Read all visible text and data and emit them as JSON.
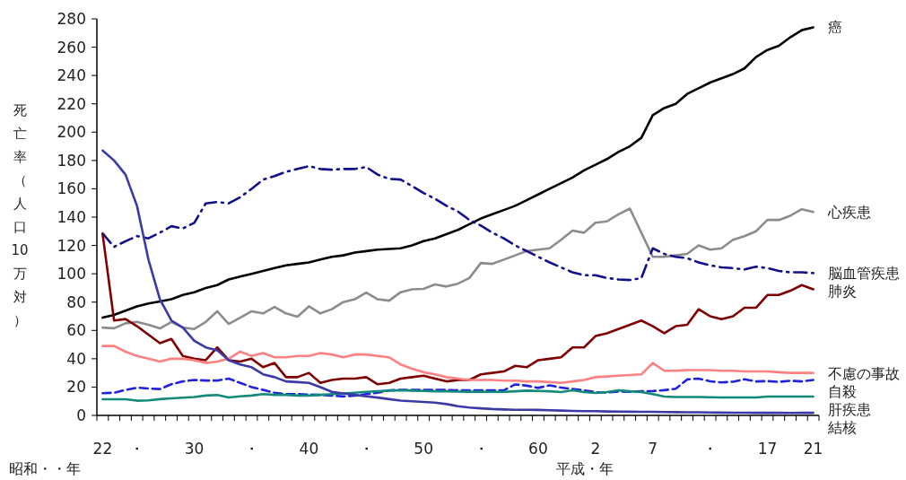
{
  "chart_data": {
    "type": "line",
    "ylabel": "死亡率（人口10万対）",
    "xlabel": "昭和・・年",
    "annotations": [
      "平成・年"
    ],
    "categories": [
      "22",
      null,
      null,
      "・",
      null,
      null,
      null,
      null,
      "30",
      null,
      null,
      null,
      null,
      "・",
      null,
      null,
      null,
      null,
      "40",
      null,
      null,
      null,
      null,
      "・",
      null,
      null,
      null,
      null,
      "50",
      null,
      null,
      null,
      null,
      "・",
      null,
      null,
      null,
      null,
      "60",
      null,
      null,
      null,
      null,
      "2",
      null,
      null,
      null,
      null,
      "7",
      null,
      null,
      null,
      null,
      "・",
      null,
      null,
      null,
      null,
      "17",
      null,
      null,
      null,
      "21"
    ],
    "ylim": [
      0,
      280
    ],
    "yticks": [
      0,
      20,
      40,
      60,
      80,
      100,
      120,
      140,
      160,
      180,
      200,
      220,
      240,
      260,
      280
    ],
    "grid": false,
    "marker": "none",
    "series": [
      {
        "name": "癌",
        "color": "#000000",
        "line_style": "solid",
        "values": [
          69,
          71,
          74,
          77,
          79,
          80.5,
          82,
          85,
          87,
          90,
          92,
          96,
          98,
          100,
          102,
          104,
          106,
          107,
          108,
          110,
          112,
          113,
          115,
          116,
          117,
          117.5,
          118,
          120,
          123,
          125,
          128,
          131,
          135,
          139,
          142,
          145,
          148,
          152,
          156,
          160,
          164,
          168,
          173,
          177,
          181,
          186,
          190,
          196,
          212,
          217,
          220,
          227,
          231,
          235,
          238,
          241,
          245,
          253,
          258,
          261,
          267,
          272,
          274
        ]
      },
      {
        "name": "心疾患",
        "color": "#8c8c8c",
        "line_style": "solid",
        "values": [
          62,
          61.5,
          65,
          66,
          64,
          61.4,
          66,
          62,
          61,
          66,
          73.5,
          64.6,
          69,
          73.5,
          72,
          76.6,
          72,
          69.7,
          77,
          72,
          75,
          80,
          82,
          86.7,
          82,
          81,
          87,
          89,
          89.3,
          92.5,
          91,
          93,
          97,
          107.6,
          107,
          110,
          113,
          116,
          117,
          118,
          124,
          130.5,
          129,
          136,
          137,
          142,
          146,
          129,
          112,
          112,
          113,
          114,
          120,
          117,
          118,
          124,
          126.5,
          130,
          138,
          138,
          141,
          145.6,
          143.7
        ]
      },
      {
        "name": "脳血管疾患",
        "color": "#10108c",
        "line_style": "dashdot",
        "values": [
          128.5,
          119,
          123,
          126.6,
          125,
          129,
          133.6,
          132,
          136,
          149.7,
          150.7,
          149.7,
          154,
          160,
          166.5,
          169,
          172,
          174,
          176,
          174,
          173.5,
          174,
          174,
          175.4,
          170,
          167,
          166.5,
          162,
          157,
          153,
          148,
          144,
          138,
          134,
          129,
          125,
          120,
          116,
          112,
          108,
          104.5,
          101,
          99,
          99,
          97,
          96,
          95.6,
          96.9,
          118,
          114,
          112,
          111,
          108,
          106,
          104.5,
          104,
          103,
          105,
          104,
          102,
          101,
          101,
          100.5
        ]
      },
      {
        "name": "肺炎",
        "color": "#800000",
        "line_style": "solid",
        "values": [
          128,
          67,
          68,
          63,
          57,
          51,
          54,
          42,
          40,
          39,
          48,
          39,
          38,
          40,
          34,
          37,
          27,
          27,
          30,
          23,
          25,
          26,
          26,
          27,
          22,
          23,
          26,
          27,
          28,
          26,
          24,
          25,
          25,
          29,
          30,
          31,
          35,
          34,
          39,
          40,
          41,
          48,
          48,
          56,
          58,
          61,
          64,
          67,
          63,
          58,
          63,
          64,
          75,
          70,
          68,
          70,
          76,
          76,
          85,
          85,
          88,
          92,
          89
        ]
      },
      {
        "name": "不慮の事故",
        "color": "#ff8080",
        "line_style": "solid",
        "values": [
          49,
          49,
          45,
          42,
          40,
          38,
          40,
          40,
          39,
          37,
          38,
          40,
          45,
          42,
          44,
          41,
          41,
          42,
          42,
          44,
          43,
          41,
          43,
          43,
          42,
          41,
          36,
          33,
          30.5,
          29,
          27,
          26,
          25,
          25,
          25,
          24.5,
          24.5,
          24,
          24,
          23.5,
          23,
          24,
          25,
          27,
          27.5,
          28,
          28.5,
          29,
          37,
          31.5,
          31.5,
          32,
          32,
          32,
          31.5,
          31.5,
          31,
          31,
          31,
          30.5,
          30,
          30,
          30
        ]
      },
      {
        "name": "自殺",
        "color": "#2020e0",
        "line_style": "dashed",
        "values": [
          15.7,
          16,
          18,
          19.6,
          19,
          18.6,
          22,
          24,
          25,
          24.6,
          24.6,
          26,
          23,
          20,
          18,
          16,
          15,
          15,
          14.7,
          14.5,
          14,
          13.4,
          14,
          15,
          16,
          17.7,
          18,
          18,
          18,
          18,
          18,
          17.7,
          17.7,
          17.7,
          17.7,
          17.7,
          21.9,
          21,
          19.4,
          21.2,
          19.6,
          18.7,
          17.7,
          16.4,
          16.1,
          16.9,
          16.6,
          17,
          17.2,
          17.8,
          18.8,
          25.4,
          26,
          24.1,
          23.3,
          23.8,
          25.5,
          24,
          24.2,
          23.7,
          24.4,
          24,
          25
        ]
      },
      {
        "name": "肝疾患",
        "color": "#138a7a",
        "line_style": "solid",
        "values": [
          11.4,
          11.4,
          11.4,
          10.4,
          10.6,
          11.5,
          12,
          12.5,
          13,
          14,
          14.4,
          12.7,
          13.5,
          14,
          15,
          14.5,
          14.5,
          14,
          14,
          14.5,
          15,
          15.5,
          16,
          16.6,
          17,
          17.5,
          17.7,
          17.5,
          17.3,
          17,
          17,
          16.8,
          16.7,
          16.7,
          16.6,
          16.6,
          17,
          17.5,
          17.3,
          17,
          16.5,
          17.7,
          16.5,
          15.8,
          16.5,
          17.7,
          17,
          16.5,
          15,
          13.3,
          13,
          13,
          13,
          12.8,
          12.7,
          12.7,
          12.7,
          12.7,
          13.3,
          13.3,
          13.3,
          13.3,
          13.3
        ]
      },
      {
        "name": "結核",
        "color": "#3a3aa8",
        "line_style": "solid",
        "values": [
          187,
          180,
          170,
          148,
          110,
          82,
          67,
          62,
          52.6,
          48,
          46,
          39,
          36,
          34,
          29,
          27,
          24,
          23.5,
          23,
          20,
          16.6,
          15.5,
          14.5,
          13.5,
          12.6,
          11.5,
          10.5,
          10,
          9.5,
          9,
          8,
          6.5,
          5.5,
          5,
          4.5,
          4.2,
          4,
          4,
          3.9,
          3.6,
          3.4,
          3.2,
          3,
          3,
          2.8,
          2.7,
          2.6,
          2.5,
          2.5,
          2.4,
          2.3,
          2.2,
          2.2,
          2.1,
          2,
          1.9,
          1.9,
          1.8,
          1.8,
          1.8,
          1.7,
          1.8,
          1.8
        ]
      }
    ]
  }
}
